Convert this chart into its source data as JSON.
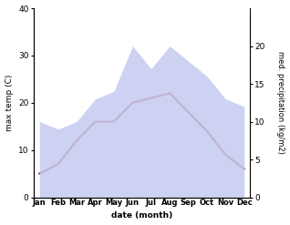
{
  "months": [
    "Jan",
    "Feb",
    "Mar",
    "Apr",
    "May",
    "Jun",
    "Jul",
    "Aug",
    "Sep",
    "Oct",
    "Nov",
    "Dec"
  ],
  "month_positions": [
    0,
    1,
    2,
    3,
    4,
    5,
    6,
    7,
    8,
    9,
    10,
    11
  ],
  "temp": [
    5,
    7,
    12,
    16,
    16,
    20,
    21,
    22,
    18,
    14,
    9,
    6
  ],
  "precip": [
    10,
    9,
    10,
    13,
    14,
    20,
    17,
    20,
    18,
    16,
    13,
    12
  ],
  "temp_color": "#9e3a4a",
  "precip_fill_color": "#c5caf0",
  "ylim_left": [
    0,
    40
  ],
  "ylim_right": [
    0,
    25
  ],
  "yticks_left": [
    0,
    10,
    20,
    30,
    40
  ],
  "yticks_right": [
    0,
    5,
    10,
    15,
    20
  ],
  "ylabel_left": "max temp (C)",
  "ylabel_right": "med. precipitation (kg/m2)",
  "xlabel": "date (month)",
  "bg_color": "#ffffff",
  "temp_linewidth": 1.6
}
